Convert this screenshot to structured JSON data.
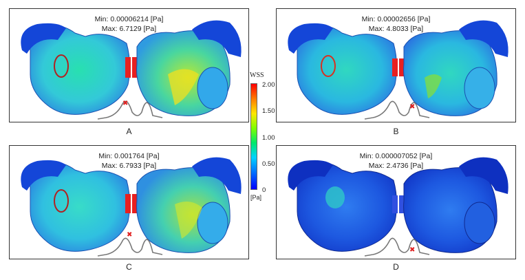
{
  "panels": [
    {
      "min": "Min: 0.00006214 [Pa]",
      "max": "Max: 6.7129 [Pa]",
      "caption": "A",
      "pulse_marker": 0.28,
      "intensity": 0.85
    },
    {
      "min": "Min: 0.00002656 [Pa]",
      "max": "Max: 4.8033 [Pa]",
      "caption": "B",
      "pulse_marker": 0.72,
      "intensity": 0.55
    },
    {
      "min": "Min: 0.001764 [Pa]",
      "max": "Max: 6.7933 [Pa]",
      "caption": "C",
      "pulse_marker": 0.5,
      "intensity": 0.75
    },
    {
      "min": "Min: 0.000007052 [Pa]",
      "max": "Max: 2.4736 [Pa]",
      "caption": "D",
      "pulse_marker": 0.97,
      "intensity": 0.15
    }
  ],
  "colorbar": {
    "title": "WSS",
    "ticks": [
      "2.00",
      "1.50",
      "1.00",
      "0.50",
      "0"
    ],
    "unit": "[Pa]"
  }
}
